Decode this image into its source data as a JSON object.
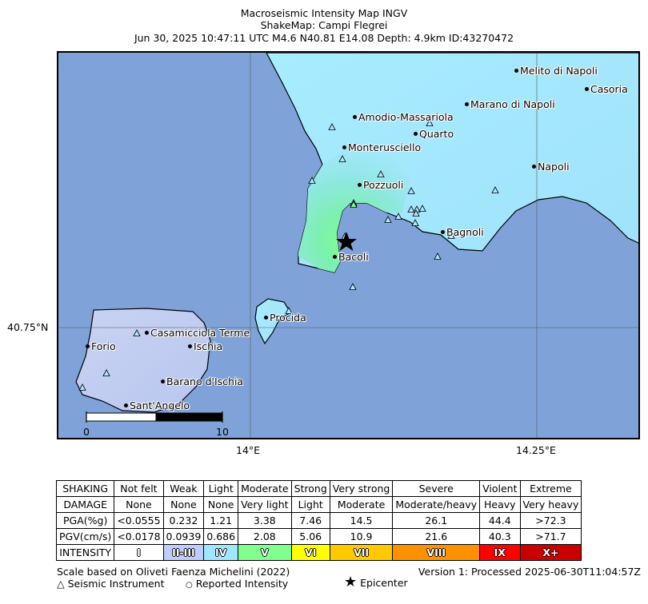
{
  "header": {
    "line1": "Macroseismic Intensity Map INGV",
    "line2": "ShakeMap: Campi Flegrei",
    "line3": "Jun 30, 2025 10:47:11 UTC M4.6 N40.81 E14.08 Depth: 4.9km ID:43270472"
  },
  "axes": {
    "lat_label": "40.75°N",
    "lon_label_1": "14°E",
    "lon_label_2": "14.25°E"
  },
  "places": [
    {
      "name": "Melito di Napoli"
    },
    {
      "name": "Casoria"
    },
    {
      "name": "Marano di Napoli"
    },
    {
      "name": "Amodio-Massariola"
    },
    {
      "name": "Quarto"
    },
    {
      "name": "Monterusciello"
    },
    {
      "name": "Napoli"
    },
    {
      "name": "Pozzuoli"
    },
    {
      "name": "Bagnoli"
    },
    {
      "name": "Bacoli"
    },
    {
      "name": "Procida"
    },
    {
      "name": "Casamicciola Terme"
    },
    {
      "name": "Forio"
    },
    {
      "name": "Ischia"
    },
    {
      "name": "Barano d'Ischia"
    },
    {
      "name": "Sant'Angelo"
    }
  ],
  "scalebar": {
    "start": "0",
    "end": "10"
  },
  "legend": {
    "row_labels": [
      "SHAKING",
      "DAMAGE",
      "PGA(%g)",
      "PGV(cm/s)",
      "INTENSITY"
    ],
    "columns": [
      {
        "shaking": "Not felt",
        "damage": "None",
        "pga": "<0.0555",
        "pgv": "<0.0178",
        "intensity": "I",
        "color": "#ffffff"
      },
      {
        "shaking": "Weak",
        "damage": "None",
        "pga": "0.232",
        "pgv": "0.0939",
        "intensity": "II-III",
        "color": "#bfccff"
      },
      {
        "shaking": "Light",
        "damage": "None",
        "pga": "1.21",
        "pgv": "0.686",
        "intensity": "IV",
        "color": "#a0e6ff"
      },
      {
        "shaking": "Moderate",
        "damage": "Very light",
        "pga": "3.38",
        "pgv": "2.08",
        "intensity": "V",
        "color": "#80ff90"
      },
      {
        "shaking": "Strong",
        "damage": "Light",
        "pga": "7.46",
        "pgv": "5.06",
        "intensity": "VI",
        "color": "#ffff00"
      },
      {
        "shaking": "Very strong",
        "damage": "Moderate",
        "pga": "14.5",
        "pgv": "10.9",
        "intensity": "VII",
        "color": "#ffc800"
      },
      {
        "shaking": "Severe",
        "damage": "Moderate/heavy",
        "pga": "26.1",
        "pgv": "21.6",
        "intensity": "VIII",
        "color": "#ff9100"
      },
      {
        "shaking": "Violent",
        "damage": "Heavy",
        "pga": "44.4",
        "pgv": "40.3",
        "intensity": "IX",
        "color": "#ff0000"
      },
      {
        "shaking": "Extreme",
        "damage": "Very heavy",
        "pga": ">72.3",
        "pgv": ">71.7",
        "intensity": "X+",
        "color": "#c80000"
      }
    ]
  },
  "footer": {
    "scale_note": "Scale based on Oliveti Faenza Michelini (2022)",
    "version": "Version 1: Processed 2025-06-30T11:04:57Z",
    "key_instrument": "Seismic Instrument",
    "key_reported": "Reported Intensity",
    "key_epicenter": "Epicenter"
  }
}
